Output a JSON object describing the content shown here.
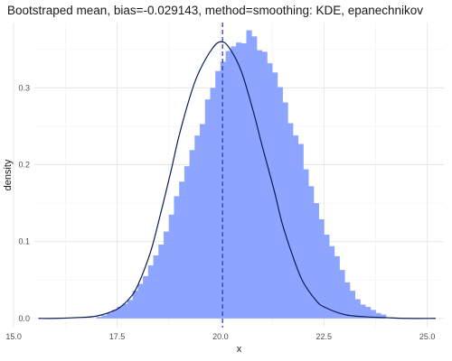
{
  "chart_data": {
    "type": "bar",
    "title": "Bootstraped mean, bias=-0.029143, method=smoothing: KDE, epanechnikov",
    "xlabel": "x",
    "ylabel": "density",
    "xlim": [
      15.5,
      25.4
    ],
    "ylim": [
      -0.012,
      0.385
    ],
    "xticks": [
      "15.0",
      "17.5",
      "20.0",
      "22.5",
      "25.0"
    ],
    "xtick_values": [
      15.0,
      17.5,
      20.0,
      22.5,
      25.0
    ],
    "yticks": [
      "0.0",
      "0.1",
      "0.2",
      "0.3"
    ],
    "ytick_values": [
      0.0,
      0.1,
      0.2,
      0.3
    ],
    "grid": true,
    "bar_color": "#8da5ff",
    "line_color": "#0d1b52",
    "vline_color": "#2f3fc0",
    "histogram": {
      "bin_start": 17.0,
      "bin_width": 0.125,
      "densities": [
        0.002,
        0.004,
        0.007,
        0.011,
        0.015,
        0.019,
        0.024,
        0.036,
        0.045,
        0.055,
        0.069,
        0.082,
        0.096,
        0.113,
        0.135,
        0.159,
        0.178,
        0.198,
        0.219,
        0.238,
        0.253,
        0.285,
        0.3,
        0.322,
        0.334,
        0.348,
        0.354,
        0.359,
        0.358,
        0.375,
        0.367,
        0.349,
        0.347,
        0.332,
        0.32,
        0.301,
        0.281,
        0.254,
        0.238,
        0.227,
        0.194,
        0.172,
        0.15,
        0.129,
        0.109,
        0.094,
        0.081,
        0.063,
        0.047,
        0.036,
        0.025,
        0.018,
        0.015,
        0.011,
        0.007,
        0.005
      ]
    },
    "kde_curve": {
      "x": [
        15.6,
        16.0,
        16.5,
        17.0,
        17.5,
        17.8,
        18.0,
        18.3,
        18.5,
        18.8,
        19.0,
        19.3,
        19.5,
        19.8,
        20.0,
        20.2,
        20.5,
        20.8,
        21.0,
        21.3,
        21.5,
        21.8,
        22.0,
        22.3,
        22.5,
        23.0,
        23.5,
        24.0,
        24.5,
        25.2
      ],
      "y": [
        0.0,
        0.0,
        0.001,
        0.003,
        0.012,
        0.026,
        0.043,
        0.085,
        0.125,
        0.191,
        0.238,
        0.295,
        0.323,
        0.351,
        0.36,
        0.353,
        0.322,
        0.268,
        0.226,
        0.166,
        0.122,
        0.073,
        0.047,
        0.024,
        0.015,
        0.005,
        0.002,
        0.001,
        0.0,
        0.0
      ]
    },
    "vline_x": 20.05
  }
}
